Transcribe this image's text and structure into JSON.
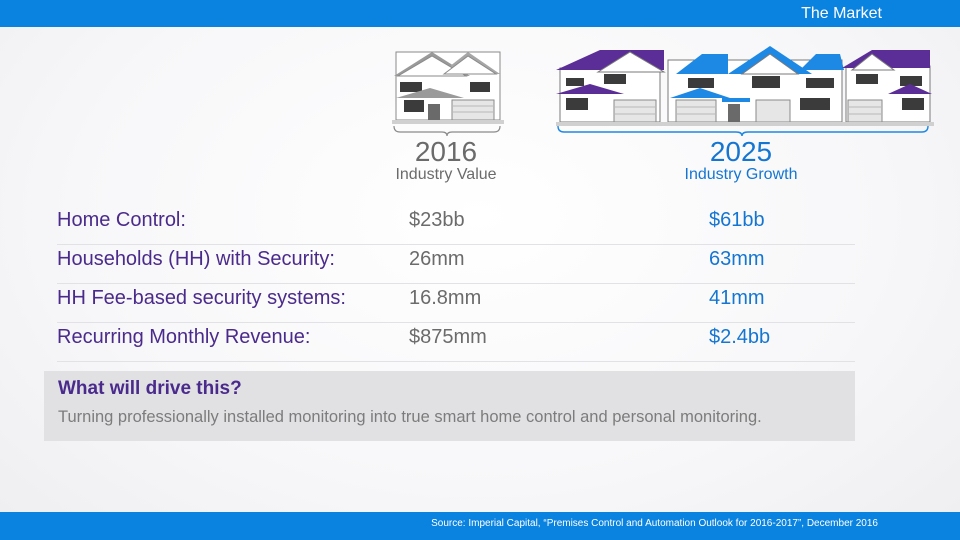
{
  "header": {
    "title": "The Market"
  },
  "columns": {
    "col2016": {
      "year": "2016",
      "subtitle": "Industry Value"
    },
    "col2025": {
      "year": "2025",
      "subtitle": "Industry Growth"
    }
  },
  "rows": [
    {
      "label": "Home Control:",
      "v2016": "$23bb",
      "v2025": "$61bb"
    },
    {
      "label": "Households (HH) with Security:",
      "v2016": "26mm",
      "v2025": "63mm"
    },
    {
      "label": "HH Fee-based security systems:",
      "v2016": "16.8mm",
      "v2025": "41mm"
    },
    {
      "label": "Recurring Monthly Revenue:",
      "v2016": "$875mm",
      "v2025": "$2.4bb"
    }
  ],
  "drive": {
    "heading": "What will drive this?",
    "text": "Turning professionally installed monitoring into true smart home control and personal monitoring."
  },
  "footer": {
    "source": "Source:  Imperial Capital, “Premises Control and Automation Outlook for 2016-2017”, December 2016"
  },
  "colors": {
    "accent_blue": "#0a82e0",
    "growth_blue": "#1576d2",
    "label_purple": "#4a2b8c",
    "roof_purple": "#5b2d97",
    "value_gray": "#6b6b6b"
  },
  "icons": [
    "house-illustration-2016",
    "houses-illustration-2025",
    "bracket-2016",
    "bracket-2025"
  ]
}
